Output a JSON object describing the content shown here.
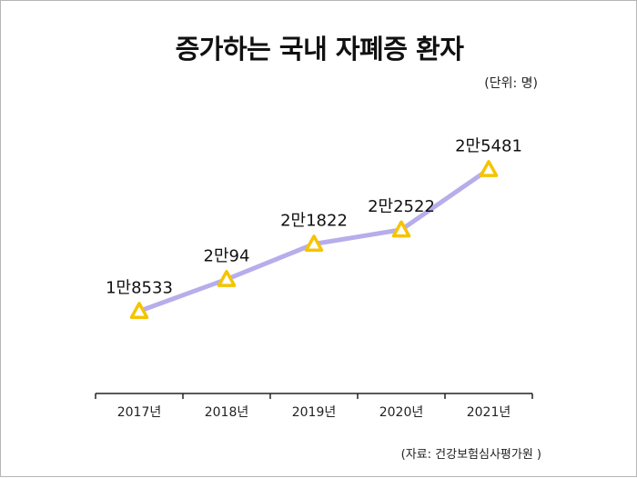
{
  "title": "증가하는 국내 자폐증 환자",
  "unit_note": "(단위: 명)",
  "source_note": "(자료: 건강보험심사평가원 )",
  "colors": {
    "line": "#b6aeea",
    "marker": "#f5c400",
    "axis": "#222222"
  },
  "chart_data": {
    "type": "line",
    "title": "증가하는 국내 자폐증 환자",
    "categories": [
      "2017년",
      "2018년",
      "2019년",
      "2020년",
      "2021년"
    ],
    "values": [
      18533,
      20094,
      21822,
      22522,
      25481
    ],
    "data_labels": [
      "1만8533",
      "2만94",
      "2만1822",
      "2만2522",
      "2만5481"
    ],
    "xlabel": "",
    "ylabel": "",
    "ylim": [
      14500,
      29500
    ],
    "grid": false,
    "marker": "triangle"
  }
}
